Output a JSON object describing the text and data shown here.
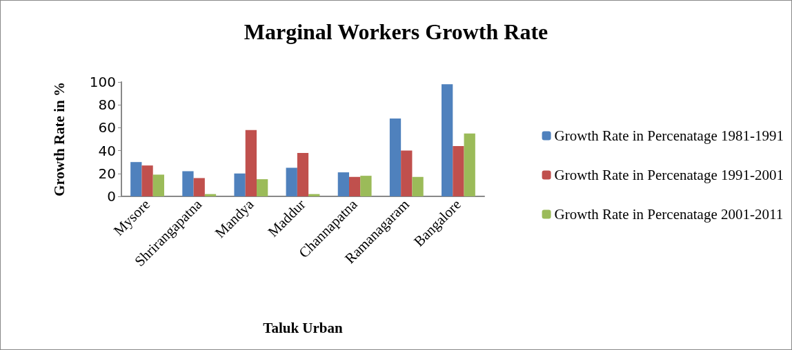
{
  "chart_data": {
    "type": "bar",
    "title": "Marginal Workers Growth Rate",
    "xlabel": "Taluk Urban",
    "ylabel": "Growth Rate in %",
    "categories": [
      "Mysore",
      "Shrirangapatna",
      "Mandya",
      "Maddur",
      "Channapatna",
      "Ramanagaram",
      "Bangalore"
    ],
    "series": [
      {
        "name": "Growth Rate in Percenatage 1981-1991",
        "color": "#4f81bd",
        "values": [
          30,
          22,
          20,
          25,
          21,
          68,
          98
        ]
      },
      {
        "name": "Growth Rate in Percenatage 1991-2001",
        "color": "#c0504d",
        "values": [
          27,
          16,
          58,
          38,
          17,
          40,
          44
        ]
      },
      {
        "name": "Growth Rate in Percenatage 2001-2011",
        "color": "#9bbb59",
        "values": [
          19,
          2,
          15,
          2,
          18,
          17,
          55
        ]
      }
    ],
    "ylim": [
      0,
      100
    ],
    "yticks": [
      0,
      20,
      40,
      60,
      80,
      100
    ],
    "grid": false,
    "legend": "right"
  }
}
